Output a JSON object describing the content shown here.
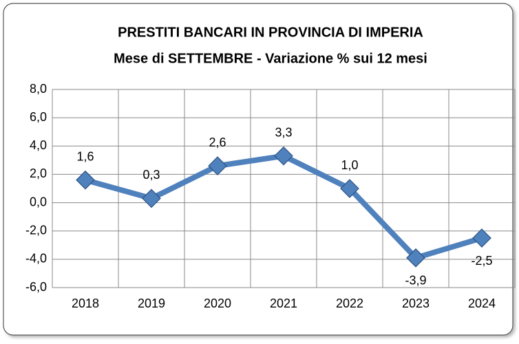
{
  "chart_data": {
    "type": "line",
    "title": "PRESTITI BANCARI IN PROVINCIA DI IMPERIA",
    "subtitle": "Mese di SETTEMBRE -  Variazione % sui 12 mesi",
    "categories": [
      "2018",
      "2019",
      "2020",
      "2021",
      "2022",
      "2023",
      "2024"
    ],
    "series": [
      {
        "name": "Variazione %",
        "color": "#4f81bd",
        "values": [
          1.6,
          0.3,
          2.6,
          3.3,
          1.0,
          -3.9,
          -2.5
        ],
        "value_labels": [
          "1,6",
          "0,3",
          "2,6",
          "3,3",
          "1,0",
          "-3,9",
          "-2,5"
        ]
      }
    ],
    "ylim": [
      -6,
      8
    ],
    "yticks": [
      {
        "value": -6,
        "label": "-6,0"
      },
      {
        "value": -4,
        "label": "-4,0"
      },
      {
        "value": -2,
        "label": "-2,0"
      },
      {
        "value": 0,
        "label": "0,0"
      },
      {
        "value": 2,
        "label": "2,0"
      },
      {
        "value": 4,
        "label": "4,0"
      },
      {
        "value": 6,
        "label": "6,0"
      },
      {
        "value": 8,
        "label": "8,0"
      }
    ],
    "grid": true
  }
}
